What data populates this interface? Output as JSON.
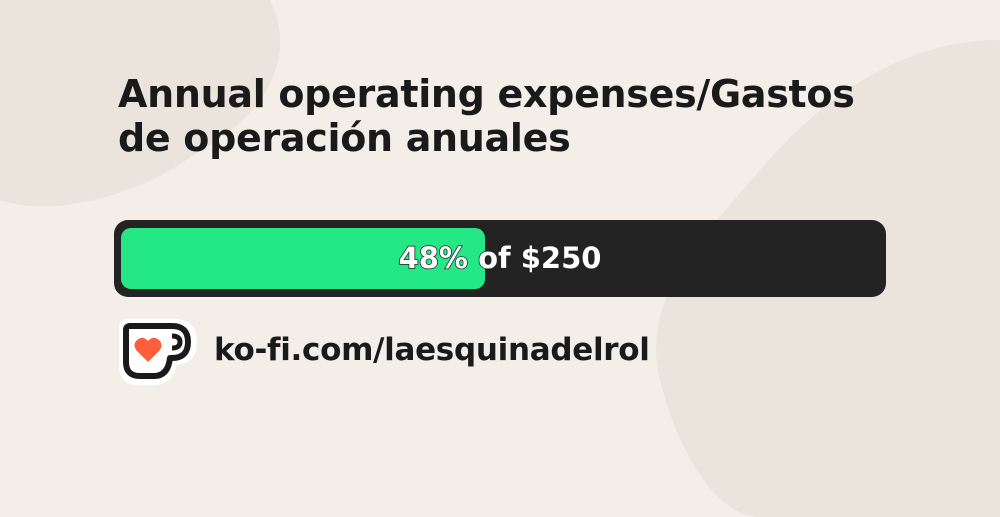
{
  "title": "Annual operating expenses/Gastos de operación anuales",
  "progress": {
    "percent": 48,
    "label": "48% of $250"
  },
  "link": "ko-fi.com/laesquinadelrol"
}
